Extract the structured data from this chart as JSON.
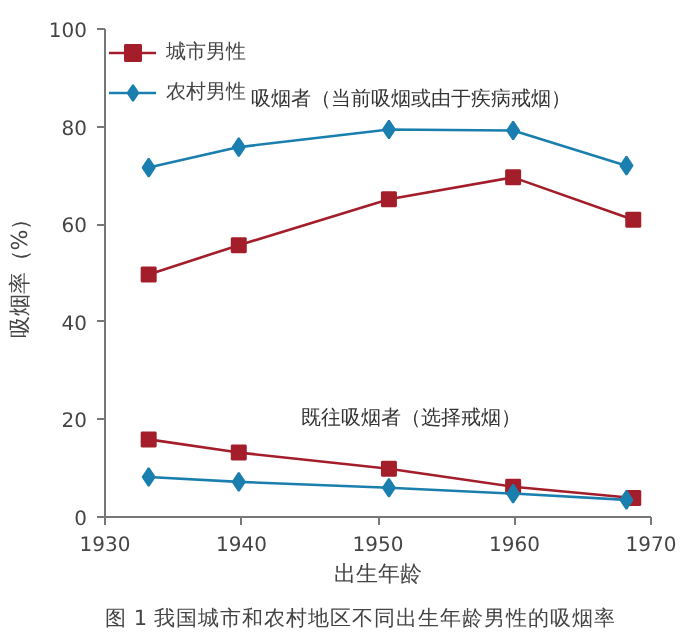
{
  "chart_data": {
    "type": "line",
    "xlabel": "出生年龄",
    "ylabel": "吸烟率（%）",
    "xlim": [
      1930,
      1970
    ],
    "xticks": [
      1930,
      1940,
      1950,
      1960,
      1970
    ],
    "ylim": [
      0,
      100
    ],
    "yticks": [
      0,
      20,
      40,
      60,
      80,
      100
    ],
    "grid": false,
    "legend": "top left",
    "line_style": "solid",
    "series": [
      {
        "name": "城市男性",
        "color": "#a31d2a",
        "marker": "square",
        "x": [
          1933.2,
          1939.8,
          1950.8,
          1959.9,
          1968.7
        ],
        "values": [
          49.7,
          55.7,
          65.1,
          69.6,
          60.9
        ]
      },
      {
        "name": "农村男性",
        "color": "#1a7fae",
        "marker": "diamond",
        "x": [
          1933.2,
          1939.8,
          1950.8,
          1959.9,
          1968.2
        ],
        "values": [
          71.6,
          75.8,
          79.4,
          79.2,
          72.0
        ]
      },
      {
        "color": "#a31d2a",
        "marker": "square",
        "x": [
          1933.2,
          1939.8,
          1950.8,
          1959.9,
          1968.7
        ],
        "values": [
          15.9,
          13.2,
          9.9,
          6.2,
          3.9
        ]
      },
      {
        "color": "#1a7fae",
        "marker": "diamond",
        "x": [
          1933.2,
          1939.8,
          1950.8,
          1959.9,
          1968.2
        ],
        "values": [
          8.2,
          7.2,
          6.0,
          4.8,
          3.5
        ]
      }
    ],
    "annotations": [
      "吸烟者（当前吸烟或由于疾病戒烟）",
      "既往吸烟者（选择戒烟）",
      "图 1  我国城市和农村地区不同出生年龄男性的吸烟率"
    ]
  }
}
